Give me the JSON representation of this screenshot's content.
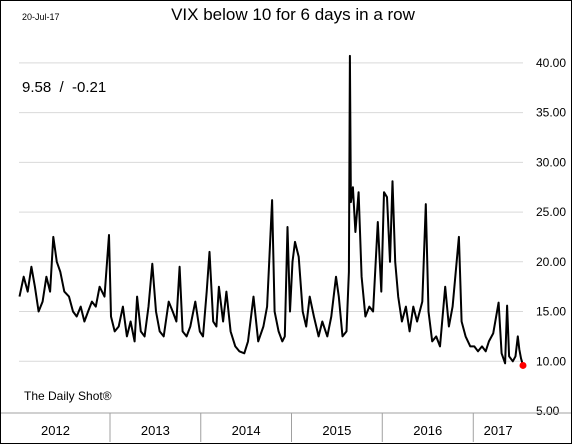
{
  "chart_data": {
    "type": "line",
    "date_label": "20-Jul-17",
    "title": "VIX below 10 for 6 days in a row",
    "annotation": "9.58  /  -0.21",
    "source": "The Daily Shot®",
    "x_range": [
      "2012-01-01",
      "2017-07-20"
    ],
    "ylim": [
      5,
      42
    ],
    "y_ticks": [
      5,
      10,
      15,
      20,
      25,
      30,
      35,
      40
    ],
    "y_tick_labels": [
      "5.00",
      "10.00",
      "15.00",
      "20.00",
      "25.00",
      "30.00",
      "35.00",
      "40.00"
    ],
    "grid": true,
    "year_labels": [
      "2012",
      "2013",
      "2014",
      "2015",
      "2016",
      "2017"
    ],
    "series": [
      {
        "color": "#000000",
        "points": [
          [
            "2012-01-03",
            16.5
          ],
          [
            "2012-01-20",
            18.5
          ],
          [
            "2012-02-05",
            17.0
          ],
          [
            "2012-02-20",
            19.5
          ],
          [
            "2012-03-05",
            17.5
          ],
          [
            "2012-03-20",
            15.0
          ],
          [
            "2012-04-05",
            16.0
          ],
          [
            "2012-04-20",
            18.5
          ],
          [
            "2012-05-05",
            17.0
          ],
          [
            "2012-05-18",
            22.5
          ],
          [
            "2012-06-01",
            20.0
          ],
          [
            "2012-06-15",
            19.0
          ],
          [
            "2012-07-01",
            17.0
          ],
          [
            "2012-07-20",
            16.5
          ],
          [
            "2012-08-05",
            15.0
          ],
          [
            "2012-08-20",
            14.5
          ],
          [
            "2012-09-05",
            15.5
          ],
          [
            "2012-09-20",
            14.0
          ],
          [
            "2012-10-05",
            15.0
          ],
          [
            "2012-10-20",
            16.0
          ],
          [
            "2012-11-05",
            15.5
          ],
          [
            "2012-11-20",
            17.5
          ],
          [
            "2012-12-10",
            16.5
          ],
          [
            "2012-12-28",
            22.7
          ],
          [
            "2013-01-05",
            14.5
          ],
          [
            "2013-01-20",
            13.0
          ],
          [
            "2013-02-05",
            13.5
          ],
          [
            "2013-02-22",
            15.5
          ],
          [
            "2013-03-10",
            12.5
          ],
          [
            "2013-03-25",
            14.0
          ],
          [
            "2013-04-10",
            12.0
          ],
          [
            "2013-04-20",
            16.5
          ],
          [
            "2013-05-05",
            13.0
          ],
          [
            "2013-05-20",
            12.5
          ],
          [
            "2013-06-05",
            15.5
          ],
          [
            "2013-06-20",
            19.8
          ],
          [
            "2013-07-05",
            15.0
          ],
          [
            "2013-07-20",
            13.0
          ],
          [
            "2013-08-05",
            12.5
          ],
          [
            "2013-08-25",
            16.0
          ],
          [
            "2013-09-10",
            15.0
          ],
          [
            "2013-09-25",
            14.0
          ],
          [
            "2013-10-08",
            19.5
          ],
          [
            "2013-10-20",
            13.0
          ],
          [
            "2013-11-05",
            12.5
          ],
          [
            "2013-11-20",
            13.5
          ],
          [
            "2013-12-10",
            16.0
          ],
          [
            "2013-12-28",
            13.0
          ],
          [
            "2014-01-10",
            12.5
          ],
          [
            "2014-01-25",
            17.0
          ],
          [
            "2014-02-05",
            21.0
          ],
          [
            "2014-02-20",
            14.0
          ],
          [
            "2014-03-05",
            13.5
          ],
          [
            "2014-03-15",
            17.5
          ],
          [
            "2014-04-01",
            14.0
          ],
          [
            "2014-04-14",
            17.0
          ],
          [
            "2014-05-01",
            13.0
          ],
          [
            "2014-05-20",
            11.5
          ],
          [
            "2014-06-05",
            11.0
          ],
          [
            "2014-06-25",
            10.8
          ],
          [
            "2014-07-10",
            12.0
          ],
          [
            "2014-08-01",
            16.5
          ],
          [
            "2014-08-20",
            12.0
          ],
          [
            "2014-09-10",
            13.5
          ],
          [
            "2014-09-25",
            15.5
          ],
          [
            "2014-10-15",
            26.2
          ],
          [
            "2014-10-25",
            15.0
          ],
          [
            "2014-11-10",
            13.0
          ],
          [
            "2014-11-25",
            12.0
          ],
          [
            "2014-12-05",
            12.5
          ],
          [
            "2014-12-16",
            23.5
          ],
          [
            "2014-12-26",
            15.0
          ],
          [
            "2015-01-05",
            20.0
          ],
          [
            "2015-01-15",
            22.0
          ],
          [
            "2015-01-30",
            20.5
          ],
          [
            "2015-02-15",
            15.0
          ],
          [
            "2015-03-01",
            13.5
          ],
          [
            "2015-03-15",
            16.5
          ],
          [
            "2015-04-01",
            14.5
          ],
          [
            "2015-04-20",
            12.5
          ],
          [
            "2015-05-05",
            14.0
          ],
          [
            "2015-05-25",
            12.5
          ],
          [
            "2015-06-10",
            14.5
          ],
          [
            "2015-06-29",
            18.5
          ],
          [
            "2015-07-10",
            16.5
          ],
          [
            "2015-07-25",
            12.5
          ],
          [
            "2015-08-10",
            13.0
          ],
          [
            "2015-08-20",
            19.0
          ],
          [
            "2015-08-24",
            40.7
          ],
          [
            "2015-08-28",
            26.0
          ],
          [
            "2015-09-05",
            27.5
          ],
          [
            "2015-09-15",
            23.0
          ],
          [
            "2015-09-28",
            27.0
          ],
          [
            "2015-10-10",
            18.5
          ],
          [
            "2015-10-25",
            14.5
          ],
          [
            "2015-11-10",
            15.5
          ],
          [
            "2015-11-25",
            15.0
          ],
          [
            "2015-12-14",
            24.0
          ],
          [
            "2015-12-28",
            17.0
          ],
          [
            "2016-01-08",
            27.0
          ],
          [
            "2016-01-20",
            26.5
          ],
          [
            "2016-02-01",
            20.0
          ],
          [
            "2016-02-11",
            28.1
          ],
          [
            "2016-02-22",
            20.0
          ],
          [
            "2016-03-05",
            16.5
          ],
          [
            "2016-03-20",
            14.0
          ],
          [
            "2016-04-05",
            15.5
          ],
          [
            "2016-04-20",
            13.0
          ],
          [
            "2016-05-05",
            15.5
          ],
          [
            "2016-05-20",
            14.0
          ],
          [
            "2016-06-10",
            16.0
          ],
          [
            "2016-06-24",
            25.8
          ],
          [
            "2016-07-05",
            15.0
          ],
          [
            "2016-07-20",
            12.0
          ],
          [
            "2016-08-05",
            12.5
          ],
          [
            "2016-08-20",
            11.5
          ],
          [
            "2016-09-10",
            17.5
          ],
          [
            "2016-09-25",
            13.5
          ],
          [
            "2016-10-10",
            15.5
          ],
          [
            "2016-11-04",
            22.5
          ],
          [
            "2016-11-15",
            14.0
          ],
          [
            "2016-12-01",
            12.5
          ],
          [
            "2016-12-20",
            11.5
          ],
          [
            "2017-01-05",
            11.5
          ],
          [
            "2017-01-20",
            11.0
          ],
          [
            "2017-02-05",
            11.5
          ],
          [
            "2017-02-20",
            11.0
          ],
          [
            "2017-03-05",
            12.0
          ],
          [
            "2017-03-22",
            12.8
          ],
          [
            "2017-04-13",
            15.9
          ],
          [
            "2017-04-25",
            10.8
          ],
          [
            "2017-05-09",
            9.8
          ],
          [
            "2017-05-17",
            15.6
          ],
          [
            "2017-05-25",
            10.5
          ],
          [
            "2017-06-09",
            10.0
          ],
          [
            "2017-06-20",
            10.5
          ],
          [
            "2017-06-29",
            12.5
          ],
          [
            "2017-07-05",
            11.2
          ],
          [
            "2017-07-12",
            10.3
          ],
          [
            "2017-07-20",
            9.58
          ]
        ]
      }
    ],
    "last_point": {
      "date": "2017-07-20",
      "value": 9.58,
      "color": "#ff0000"
    }
  }
}
